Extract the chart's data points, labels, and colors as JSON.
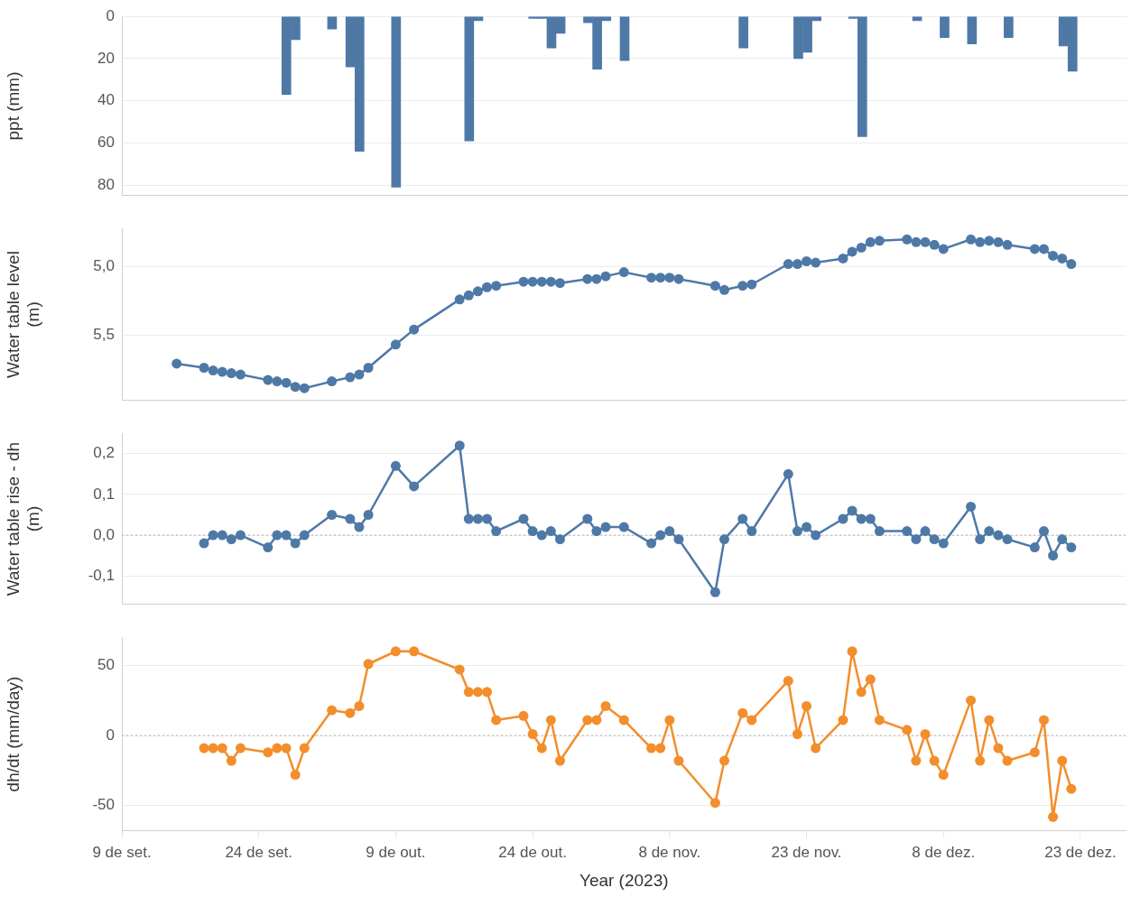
{
  "chart_data": [
    {
      "type": "bar",
      "ylabel": "ppt (mm)",
      "color": "#4e79a7",
      "grid": "y",
      "tick_labels": "y",
      "xlim": [
        "2023-09-09",
        "2023-12-28"
      ],
      "ylim": [
        85,
        0
      ],
      "yticks": [
        0,
        20,
        40,
        60,
        80
      ],
      "x": [
        "2023-09-27",
        "2023-09-28",
        "2023-10-02",
        "2023-10-04",
        "2023-10-05",
        "2023-10-09",
        "2023-10-17",
        "2023-10-18",
        "2023-10-24",
        "2023-10-25",
        "2023-10-26",
        "2023-10-27",
        "2023-10-30",
        "2023-10-31",
        "2023-11-01",
        "2023-11-03",
        "2023-11-16",
        "2023-11-22",
        "2023-11-23",
        "2023-11-24",
        "2023-11-28",
        "2023-11-29",
        "2023-12-05",
        "2023-12-08",
        "2023-12-11",
        "2023-12-15",
        "2023-12-21",
        "2023-12-22"
      ],
      "values": [
        37,
        11,
        6,
        24,
        64,
        81,
        59,
        2,
        1,
        1,
        15,
        8,
        3,
        25,
        2,
        21,
        15,
        20,
        17,
        2,
        1,
        57,
        2,
        10,
        13,
        10,
        14,
        26
      ]
    },
    {
      "type": "line",
      "ylabel": "Water table level (m)",
      "color": "#4e79a7",
      "marker": "circle",
      "grid": "y",
      "tick_labels": "y",
      "xlim": [
        "2023-09-09",
        "2023-12-28"
      ],
      "ylim": [
        5.98,
        4.72
      ],
      "yticks": [
        {
          "value": 5.0,
          "label": "5,0"
        },
        {
          "value": 5.5,
          "label": "5,5"
        }
      ],
      "x": [
        "2023-09-15",
        "2023-09-18",
        "2023-09-19",
        "2023-09-20",
        "2023-09-21",
        "2023-09-22",
        "2023-09-25",
        "2023-09-26",
        "2023-09-27",
        "2023-09-28",
        "2023-09-29",
        "2023-10-02",
        "2023-10-04",
        "2023-10-05",
        "2023-10-06",
        "2023-10-09",
        "2023-10-11",
        "2023-10-16",
        "2023-10-17",
        "2023-10-18",
        "2023-10-19",
        "2023-10-20",
        "2023-10-23",
        "2023-10-24",
        "2023-10-25",
        "2023-10-26",
        "2023-10-27",
        "2023-10-30",
        "2023-10-31",
        "2023-11-01",
        "2023-11-03",
        "2023-11-06",
        "2023-11-07",
        "2023-11-08",
        "2023-11-09",
        "2023-11-13",
        "2023-11-14",
        "2023-11-16",
        "2023-11-17",
        "2023-11-21",
        "2023-11-22",
        "2023-11-23",
        "2023-11-24",
        "2023-11-27",
        "2023-11-28",
        "2023-11-29",
        "2023-11-30",
        "2023-12-01",
        "2023-12-04",
        "2023-12-05",
        "2023-12-06",
        "2023-12-07",
        "2023-12-08",
        "2023-12-11",
        "2023-12-12",
        "2023-12-13",
        "2023-12-14",
        "2023-12-15",
        "2023-12-18",
        "2023-12-19",
        "2023-12-20",
        "2023-12-21",
        "2023-12-22"
      ],
      "values": [
        5.71,
        5.74,
        5.76,
        5.77,
        5.78,
        5.79,
        5.83,
        5.84,
        5.85,
        5.88,
        5.89,
        5.84,
        5.81,
        5.79,
        5.74,
        5.57,
        5.46,
        5.24,
        5.21,
        5.18,
        5.15,
        5.14,
        5.11,
        5.11,
        5.11,
        5.11,
        5.12,
        5.09,
        5.09,
        5.07,
        5.04,
        5.08,
        5.08,
        5.08,
        5.09,
        5.14,
        5.17,
        5.14,
        5.13,
        4.98,
        4.98,
        4.96,
        4.97,
        4.94,
        4.89,
        4.86,
        4.82,
        4.81,
        4.8,
        4.82,
        4.82,
        4.84,
        4.87,
        4.8,
        4.82,
        4.81,
        4.82,
        4.84,
        4.87,
        4.87,
        4.92,
        4.94,
        4.98
      ]
    },
    {
      "type": "line",
      "ylabel": "Water table rise - dh (m)",
      "color": "#4e79a7",
      "marker": "circle",
      "grid": "y",
      "tick_labels": "y",
      "xlim": [
        "2023-09-09",
        "2023-12-28"
      ],
      "ylim": [
        -0.17,
        0.25
      ],
      "yticks": [
        {
          "value": -0.1,
          "label": "-0,1"
        },
        {
          "value": 0,
          "label": "0,0"
        },
        {
          "value": 0.1,
          "label": "0,1"
        },
        {
          "value": 0.2,
          "label": "0,2"
        }
      ],
      "ref_lines": [
        {
          "axis": "y",
          "value": 0,
          "line_style": "dotted"
        }
      ],
      "x": [
        "2023-09-18",
        "2023-09-19",
        "2023-09-20",
        "2023-09-21",
        "2023-09-22",
        "2023-09-25",
        "2023-09-26",
        "2023-09-27",
        "2023-09-28",
        "2023-09-29",
        "2023-10-02",
        "2023-10-04",
        "2023-10-05",
        "2023-10-06",
        "2023-10-09",
        "2023-10-11",
        "2023-10-16",
        "2023-10-17",
        "2023-10-18",
        "2023-10-19",
        "2023-10-20",
        "2023-10-23",
        "2023-10-24",
        "2023-10-25",
        "2023-10-26",
        "2023-10-27",
        "2023-10-30",
        "2023-10-31",
        "2023-11-01",
        "2023-11-03",
        "2023-11-06",
        "2023-11-07",
        "2023-11-08",
        "2023-11-09",
        "2023-11-13",
        "2023-11-14",
        "2023-11-16",
        "2023-11-17",
        "2023-11-21",
        "2023-11-22",
        "2023-11-23",
        "2023-11-24",
        "2023-11-27",
        "2023-11-28",
        "2023-11-29",
        "2023-11-30",
        "2023-12-01",
        "2023-12-04",
        "2023-12-05",
        "2023-12-06",
        "2023-12-07",
        "2023-12-08",
        "2023-12-11",
        "2023-12-12",
        "2023-12-13",
        "2023-12-14",
        "2023-12-15",
        "2023-12-18",
        "2023-12-19",
        "2023-12-20",
        "2023-12-21",
        "2023-12-22"
      ],
      "values": [
        -0.02,
        0,
        0,
        -0.01,
        0,
        -0.03,
        0,
        0,
        -0.02,
        0,
        0.05,
        0.04,
        0.02,
        0.05,
        0.17,
        0.12,
        0.22,
        0.04,
        0.04,
        0.04,
        0.01,
        0.04,
        0.01,
        0,
        0.01,
        -0.01,
        0.04,
        0.01,
        0.02,
        0.02,
        -0.02,
        0,
        0.01,
        -0.01,
        -0.14,
        -0.01,
        0.04,
        0.01,
        0.15,
        0.01,
        0.02,
        0,
        0.04,
        0.06,
        0.04,
        0.04,
        0.01,
        0.01,
        -0.01,
        0.01,
        -0.01,
        -0.02,
        0.07,
        -0.01,
        0.01,
        0,
        -0.01,
        -0.03,
        0.01,
        -0.05,
        -0.01,
        -0.03
      ]
    },
    {
      "type": "line",
      "ylabel": "dh/dt (mm/day)",
      "xlabel": "Year (2023)",
      "color": "#f28e2b",
      "marker": "circle",
      "grid": "y",
      "xlim": [
        "2023-09-09",
        "2023-12-28"
      ],
      "ylim": [
        -68,
        70
      ],
      "yticks": [
        -50,
        0,
        50
      ],
      "xticks": [
        {
          "value": "2023-09-09",
          "label": "9 de set."
        },
        {
          "value": "2023-09-24",
          "label": "24 de set."
        },
        {
          "value": "2023-10-09",
          "label": "9 de out."
        },
        {
          "value": "2023-10-24",
          "label": "24 de out."
        },
        {
          "value": "2023-11-08",
          "label": "8 de nov."
        },
        {
          "value": "2023-11-23",
          "label": "23 de nov."
        },
        {
          "value": "2023-12-08",
          "label": "8 de dez."
        },
        {
          "value": "2023-12-23",
          "label": "23 de dez."
        }
      ],
      "ref_lines": [
        {
          "axis": "y",
          "value": 0,
          "line_style": "dotted"
        }
      ],
      "x": [
        "2023-09-18",
        "2023-09-19",
        "2023-09-20",
        "2023-09-21",
        "2023-09-22",
        "2023-09-25",
        "2023-09-26",
        "2023-09-27",
        "2023-09-28",
        "2023-09-29",
        "2023-10-02",
        "2023-10-04",
        "2023-10-05",
        "2023-10-06",
        "2023-10-09",
        "2023-10-11",
        "2023-10-16",
        "2023-10-17",
        "2023-10-18",
        "2023-10-19",
        "2023-10-20",
        "2023-10-23",
        "2023-10-24",
        "2023-10-25",
        "2023-10-26",
        "2023-10-27",
        "2023-10-30",
        "2023-10-31",
        "2023-11-01",
        "2023-11-03",
        "2023-11-06",
        "2023-11-07",
        "2023-11-08",
        "2023-11-09",
        "2023-11-13",
        "2023-11-14",
        "2023-11-16",
        "2023-11-17",
        "2023-11-21",
        "2023-11-22",
        "2023-11-23",
        "2023-11-24",
        "2023-11-27",
        "2023-11-28",
        "2023-11-29",
        "2023-11-30",
        "2023-12-01",
        "2023-12-04",
        "2023-12-05",
        "2023-12-06",
        "2023-12-07",
        "2023-12-08",
        "2023-12-11",
        "2023-12-12",
        "2023-12-13",
        "2023-12-14",
        "2023-12-15",
        "2023-12-18",
        "2023-12-19",
        "2023-12-20",
        "2023-12-21",
        "2023-12-22"
      ],
      "values": [
        -9,
        -9,
        -9,
        -18,
        -9,
        -12,
        -9,
        -9,
        -28,
        -9,
        18,
        16,
        21,
        51,
        60,
        60,
        47,
        31,
        31,
        31,
        11,
        14,
        1,
        -9,
        11,
        -18,
        11,
        11,
        21,
        11,
        -9,
        -9,
        11,
        -18,
        -48,
        -18,
        16,
        11,
        39,
        1,
        21,
        -9,
        11,
        60,
        31,
        40,
        11,
        4,
        -18,
        1,
        -18,
        -28,
        25,
        -18,
        11,
        -9,
        -18,
        -12,
        11,
        -58,
        -18,
        -38
      ]
    }
  ]
}
